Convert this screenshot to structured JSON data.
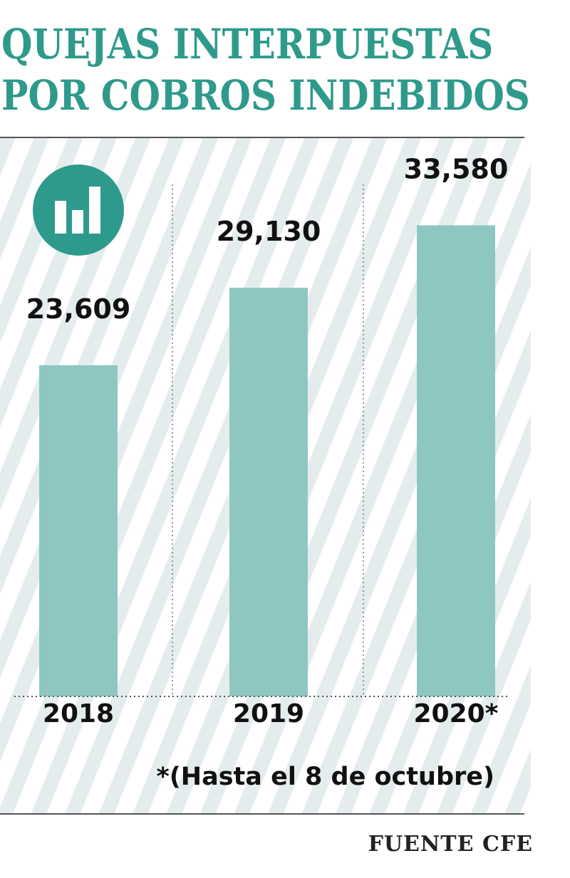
{
  "title_lines": [
    "QUEJAS INTERPUESTAS",
    "POR COBROS INDEBIDOS"
  ],
  "source": "FUENTE CFE",
  "icon": "bar-chart-icon",
  "colors": {
    "title": "#2e9a8b",
    "bar": "#8ec7c2",
    "icon_bg": "#2e9a8b",
    "stripe": "#e4ecee"
  },
  "chart_data": {
    "type": "bar",
    "title": "QUEJAS INTERPUESTAS POR COBROS INDEBIDOS",
    "categories": [
      "2018",
      "2019",
      "2020*"
    ],
    "values": [
      23609,
      29130,
      33580
    ],
    "value_labels": [
      "23,609",
      "29,130",
      "33,580"
    ],
    "footnote": "*(Hasta el 8 de octubre)",
    "grid": false,
    "ylim": [
      0,
      40000
    ]
  }
}
